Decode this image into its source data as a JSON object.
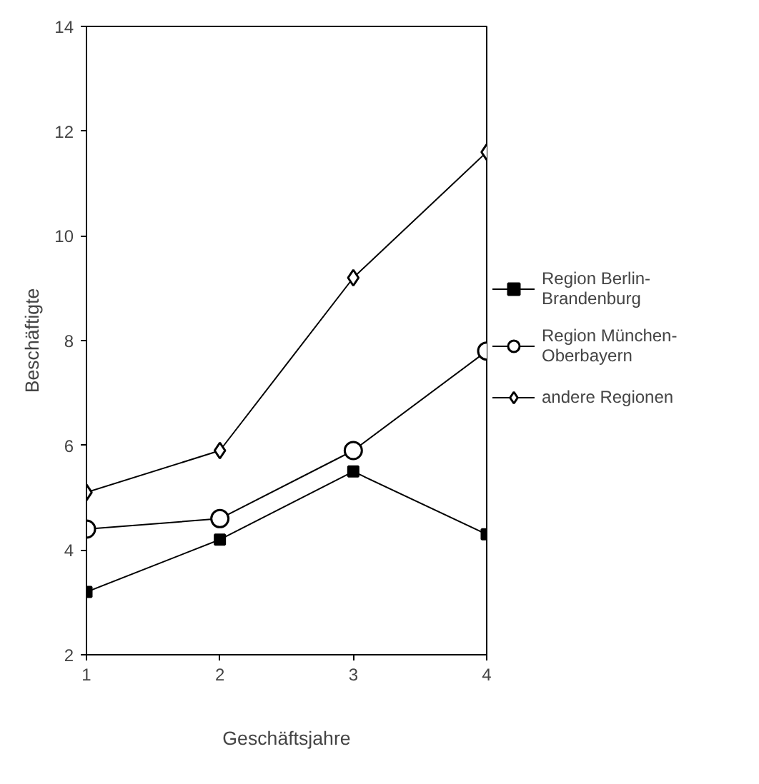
{
  "chart_data": {
    "type": "line",
    "xlabel": "Geschäftsjahre",
    "ylabel": "Beschäftigte",
    "x": [
      1,
      2,
      3,
      4
    ],
    "xlim": [
      1,
      4
    ],
    "xticks": [
      1,
      2,
      3,
      4
    ],
    "ylim": [
      2,
      14
    ],
    "yticks": [
      2,
      4,
      6,
      8,
      10,
      12,
      14
    ],
    "grid": false,
    "legend": "right",
    "series": [
      {
        "name": "Region Berlin-Brandenburg",
        "color": "#000000",
        "marker": "square",
        "values": [
          3.2,
          4.2,
          5.5,
          4.3
        ]
      },
      {
        "name": "Region München-Oberbayern",
        "color": "#000000",
        "marker": "circle",
        "values": [
          4.4,
          4.6,
          5.9,
          7.8
        ]
      },
      {
        "name": "andere Regionen",
        "color": "#000000",
        "marker": "diamond",
        "values": [
          5.1,
          5.9,
          9.2,
          11.6
        ]
      }
    ]
  }
}
